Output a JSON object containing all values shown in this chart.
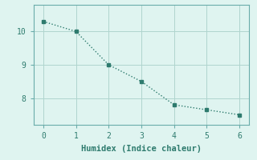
{
  "x": [
    0,
    1,
    2,
    3,
    4,
    5,
    6
  ],
  "y": [
    10.3,
    10.0,
    9.0,
    8.5,
    7.8,
    7.65,
    7.5
  ],
  "line_color": "#2e7b6e",
  "marker": "s",
  "marker_size": 2.5,
  "linewidth": 1.0,
  "linestyle": "dotted",
  "xlabel": "Humidex (Indice chaleur)",
  "xlabel_fontsize": 7.5,
  "background_color": "#dff4f0",
  "grid_color": "#b0d5ce",
  "spine_color": "#6aacaa",
  "xlim": [
    -0.3,
    6.3
  ],
  "ylim": [
    7.2,
    10.8
  ],
  "xticks": [
    0,
    1,
    2,
    3,
    4,
    5,
    6
  ],
  "yticks": [
    8,
    9,
    10
  ],
  "tick_fontsize": 7,
  "font_family": "monospace"
}
